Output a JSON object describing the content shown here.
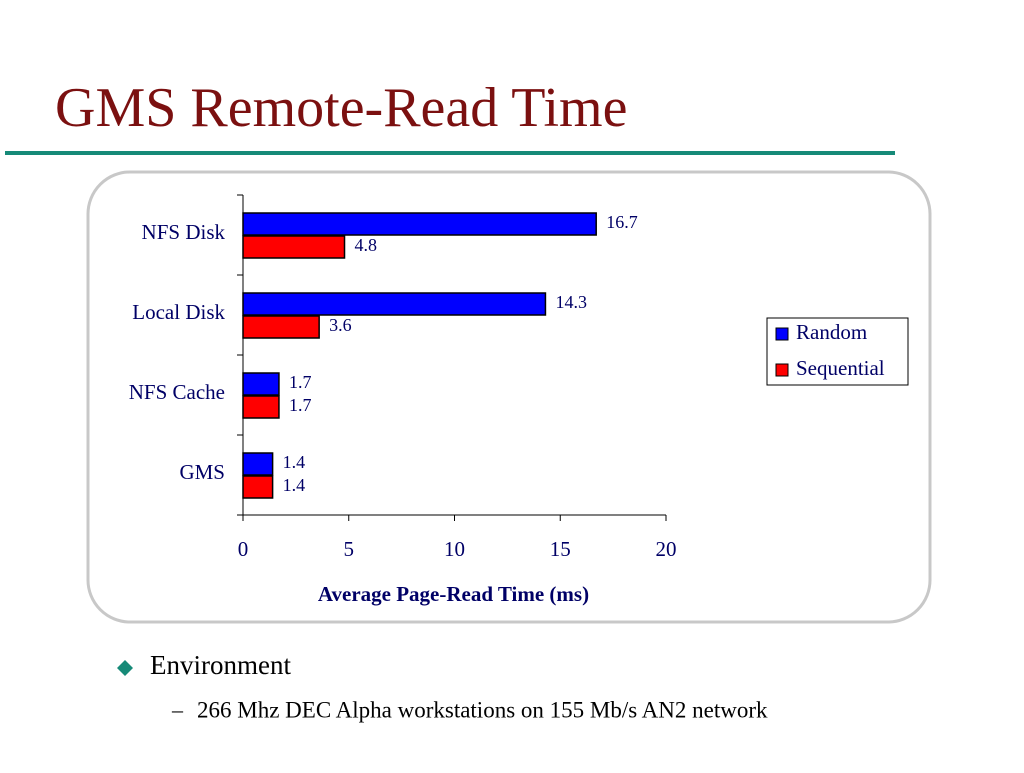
{
  "title": "GMS Remote-Read Time",
  "chart_data": {
    "type": "hbar",
    "categories": [
      "NFS Disk",
      "Local Disk",
      "NFS Cache",
      "GMS"
    ],
    "series": [
      {
        "name": "Random",
        "color": "#0000ff",
        "values": [
          16.7,
          14.3,
          1.7,
          1.4
        ]
      },
      {
        "name": "Sequential",
        "color": "#ff0000",
        "values": [
          4.8,
          3.6,
          1.7,
          1.4
        ]
      }
    ],
    "xlabel": "Average Page-Read Time (ms)",
    "xlim": [
      0,
      20
    ],
    "xticks": [
      0,
      5,
      10,
      15,
      20
    ],
    "legend": "right"
  },
  "bullets": [
    {
      "text": "Environment",
      "sub": [
        "266 Mhz DEC Alpha workstations on 155 Mb/s AN2 network"
      ]
    }
  ]
}
